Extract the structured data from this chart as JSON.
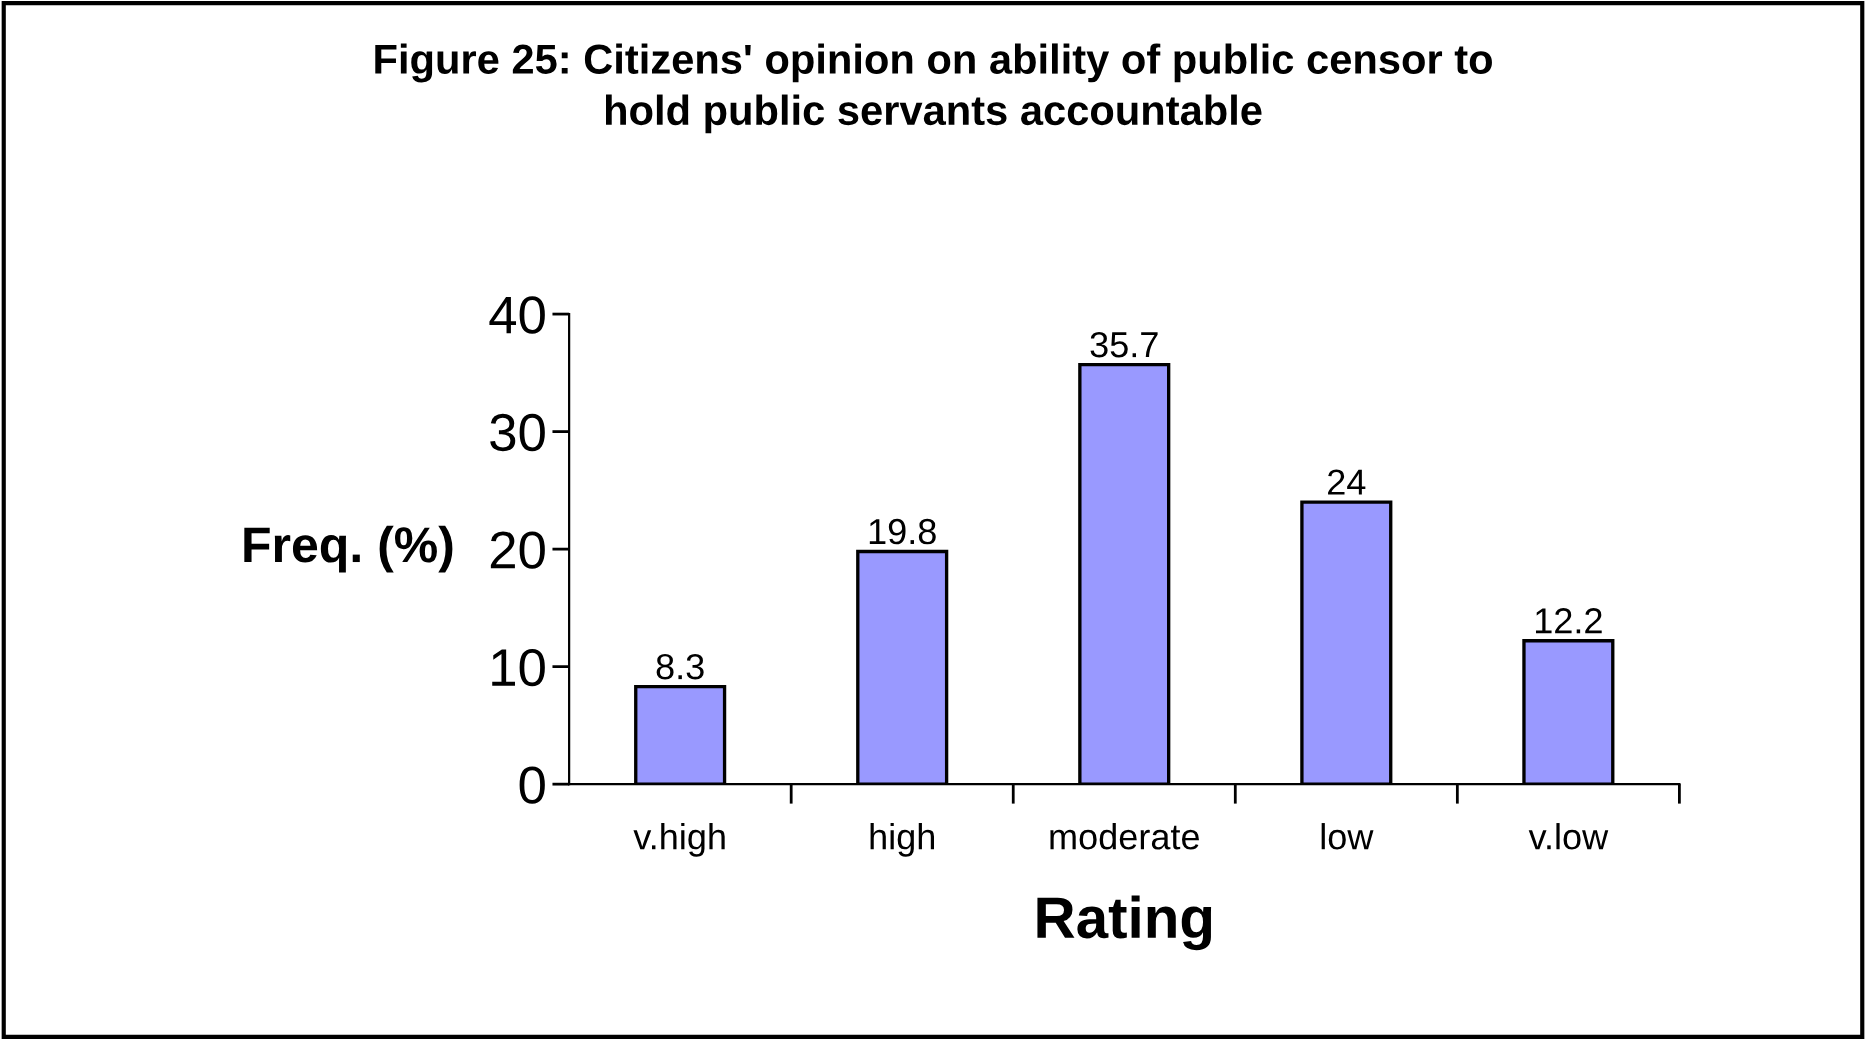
{
  "chart_data": {
    "type": "bar",
    "title": "Figure 25: Citizens' opinion on ability of public censor to\nhold public servants accountable",
    "xlabel": "Rating",
    "ylabel": "Freq. (%)",
    "categories": [
      "v.high",
      "high",
      "moderate",
      "low",
      "v.low"
    ],
    "values": [
      8.3,
      19.8,
      35.7,
      24,
      12.2
    ],
    "color": "#9999ff",
    "ylim": [
      0,
      40
    ],
    "yticks": [
      0,
      10,
      20,
      30,
      40
    ],
    "data_labels": true,
    "grid": false,
    "legend": false
  }
}
